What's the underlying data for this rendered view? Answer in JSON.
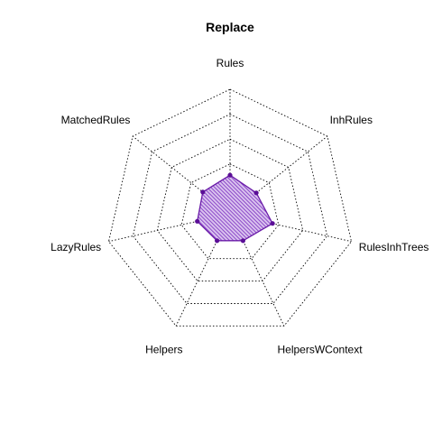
{
  "chart_data": {
    "type": "radar",
    "title": "Replace",
    "axes": [
      "Rules",
      "InhRules",
      "RulesInhTrees",
      "HelpersWContext",
      "Helpers",
      "LazyRules",
      "MatchedRules"
    ],
    "rmax": 1.0,
    "grid_levels": [
      0.2,
      0.4,
      0.6,
      0.8,
      1.0
    ],
    "series": [
      {
        "values": [
          0.31,
          0.27,
          0.35,
          0.24,
          0.24,
          0.27,
          0.28
        ],
        "color": "#6a1ba8",
        "fill": "hatched-purple"
      }
    ],
    "grid": true,
    "legend": "none"
  }
}
